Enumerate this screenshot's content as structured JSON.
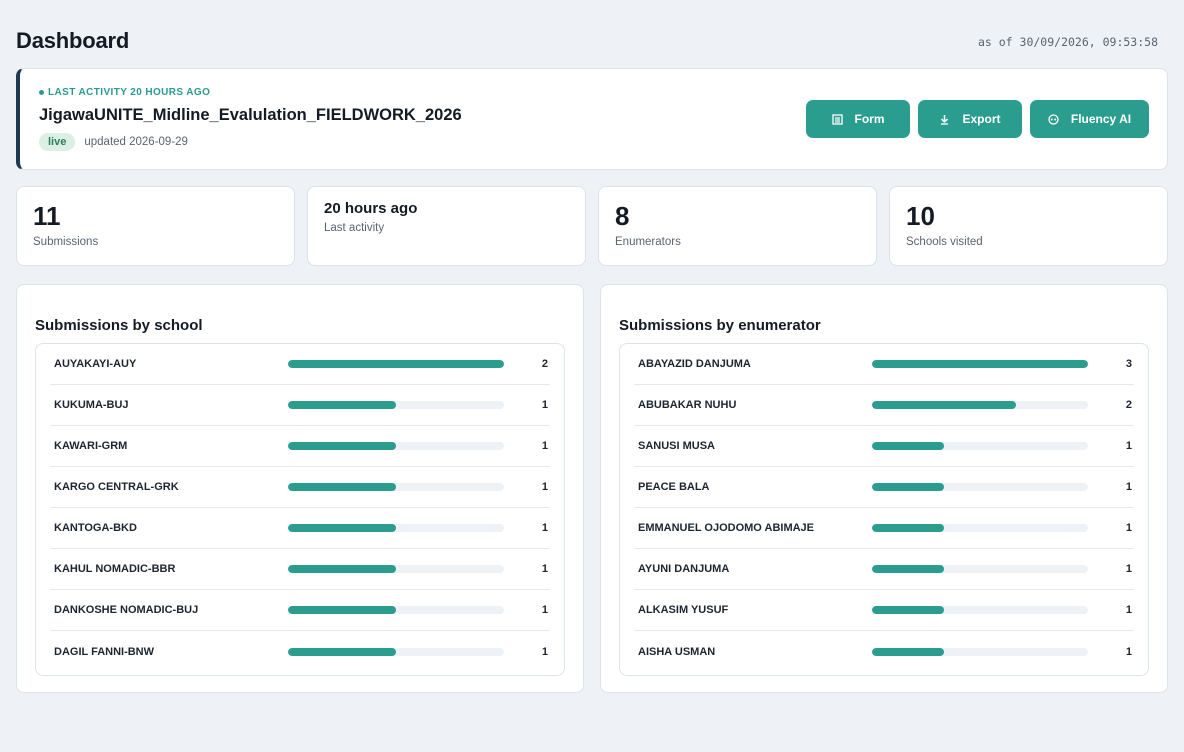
{
  "header": {
    "title": "Dashboard",
    "timestamp": "as of 30/09/2026, 09:53:58"
  },
  "project": {
    "activity": "LAST ACTIVITY 20 HOURS AGO",
    "name": "JigawaUNITE_Midline_Evalulation_FIELDWORK_2026",
    "status": "live",
    "updated": "updated 2026-09-29",
    "actions": [
      {
        "label": "Form",
        "icon": "form-icon"
      },
      {
        "label": "Export",
        "icon": "download-icon"
      },
      {
        "label": "Fluency AI",
        "icon": "ai-icon"
      }
    ]
  },
  "stats": [
    {
      "value": "11",
      "label": "Submissions"
    },
    {
      "value": "20 hours ago",
      "label": "Last activity"
    },
    {
      "value": "8",
      "label": "Enumerators"
    },
    {
      "value": "10",
      "label": "Schools visited"
    }
  ],
  "by_school": {
    "title": "Submissions by school",
    "max": 2,
    "rows": [
      {
        "label": "AUYAKAYI-AUY",
        "count": 2
      },
      {
        "label": "KUKUMA-BUJ",
        "count": 1
      },
      {
        "label": "KAWARI-GRM",
        "count": 1
      },
      {
        "label": "KARGO CENTRAL-GRK",
        "count": 1
      },
      {
        "label": "KANTOGA-BKD",
        "count": 1
      },
      {
        "label": "KAHUL NOMADIC-BBR",
        "count": 1
      },
      {
        "label": "DANKOSHE NOMADIC-BUJ",
        "count": 1
      },
      {
        "label": "DAGIL FANNI-BNW",
        "count": 1
      }
    ]
  },
  "by_enumerator": {
    "title": "Submissions by enumerator",
    "max": 3,
    "rows": [
      {
        "label": "ABAYAZID DANJUMA",
        "count": 3
      },
      {
        "label": "ABUBAKAR NUHU",
        "count": 2
      },
      {
        "label": "SANUSI MUSA",
        "count": 1
      },
      {
        "label": "PEACE BALA",
        "count": 1
      },
      {
        "label": "EMMANUEL OJODOMO ABIMAJE",
        "count": 1
      },
      {
        "label": "AYUNI DANJUMA",
        "count": 1
      },
      {
        "label": "ALKASIM YUSUF",
        "count": 1
      },
      {
        "label": "AISHA USMAN",
        "count": 1
      }
    ]
  },
  "colors": {
    "accent": "#2a9d8f",
    "card_border_accent": "#1e3a52",
    "live_badge_bg": "#dcefe5",
    "live_badge_text": "#2e7d5a"
  }
}
